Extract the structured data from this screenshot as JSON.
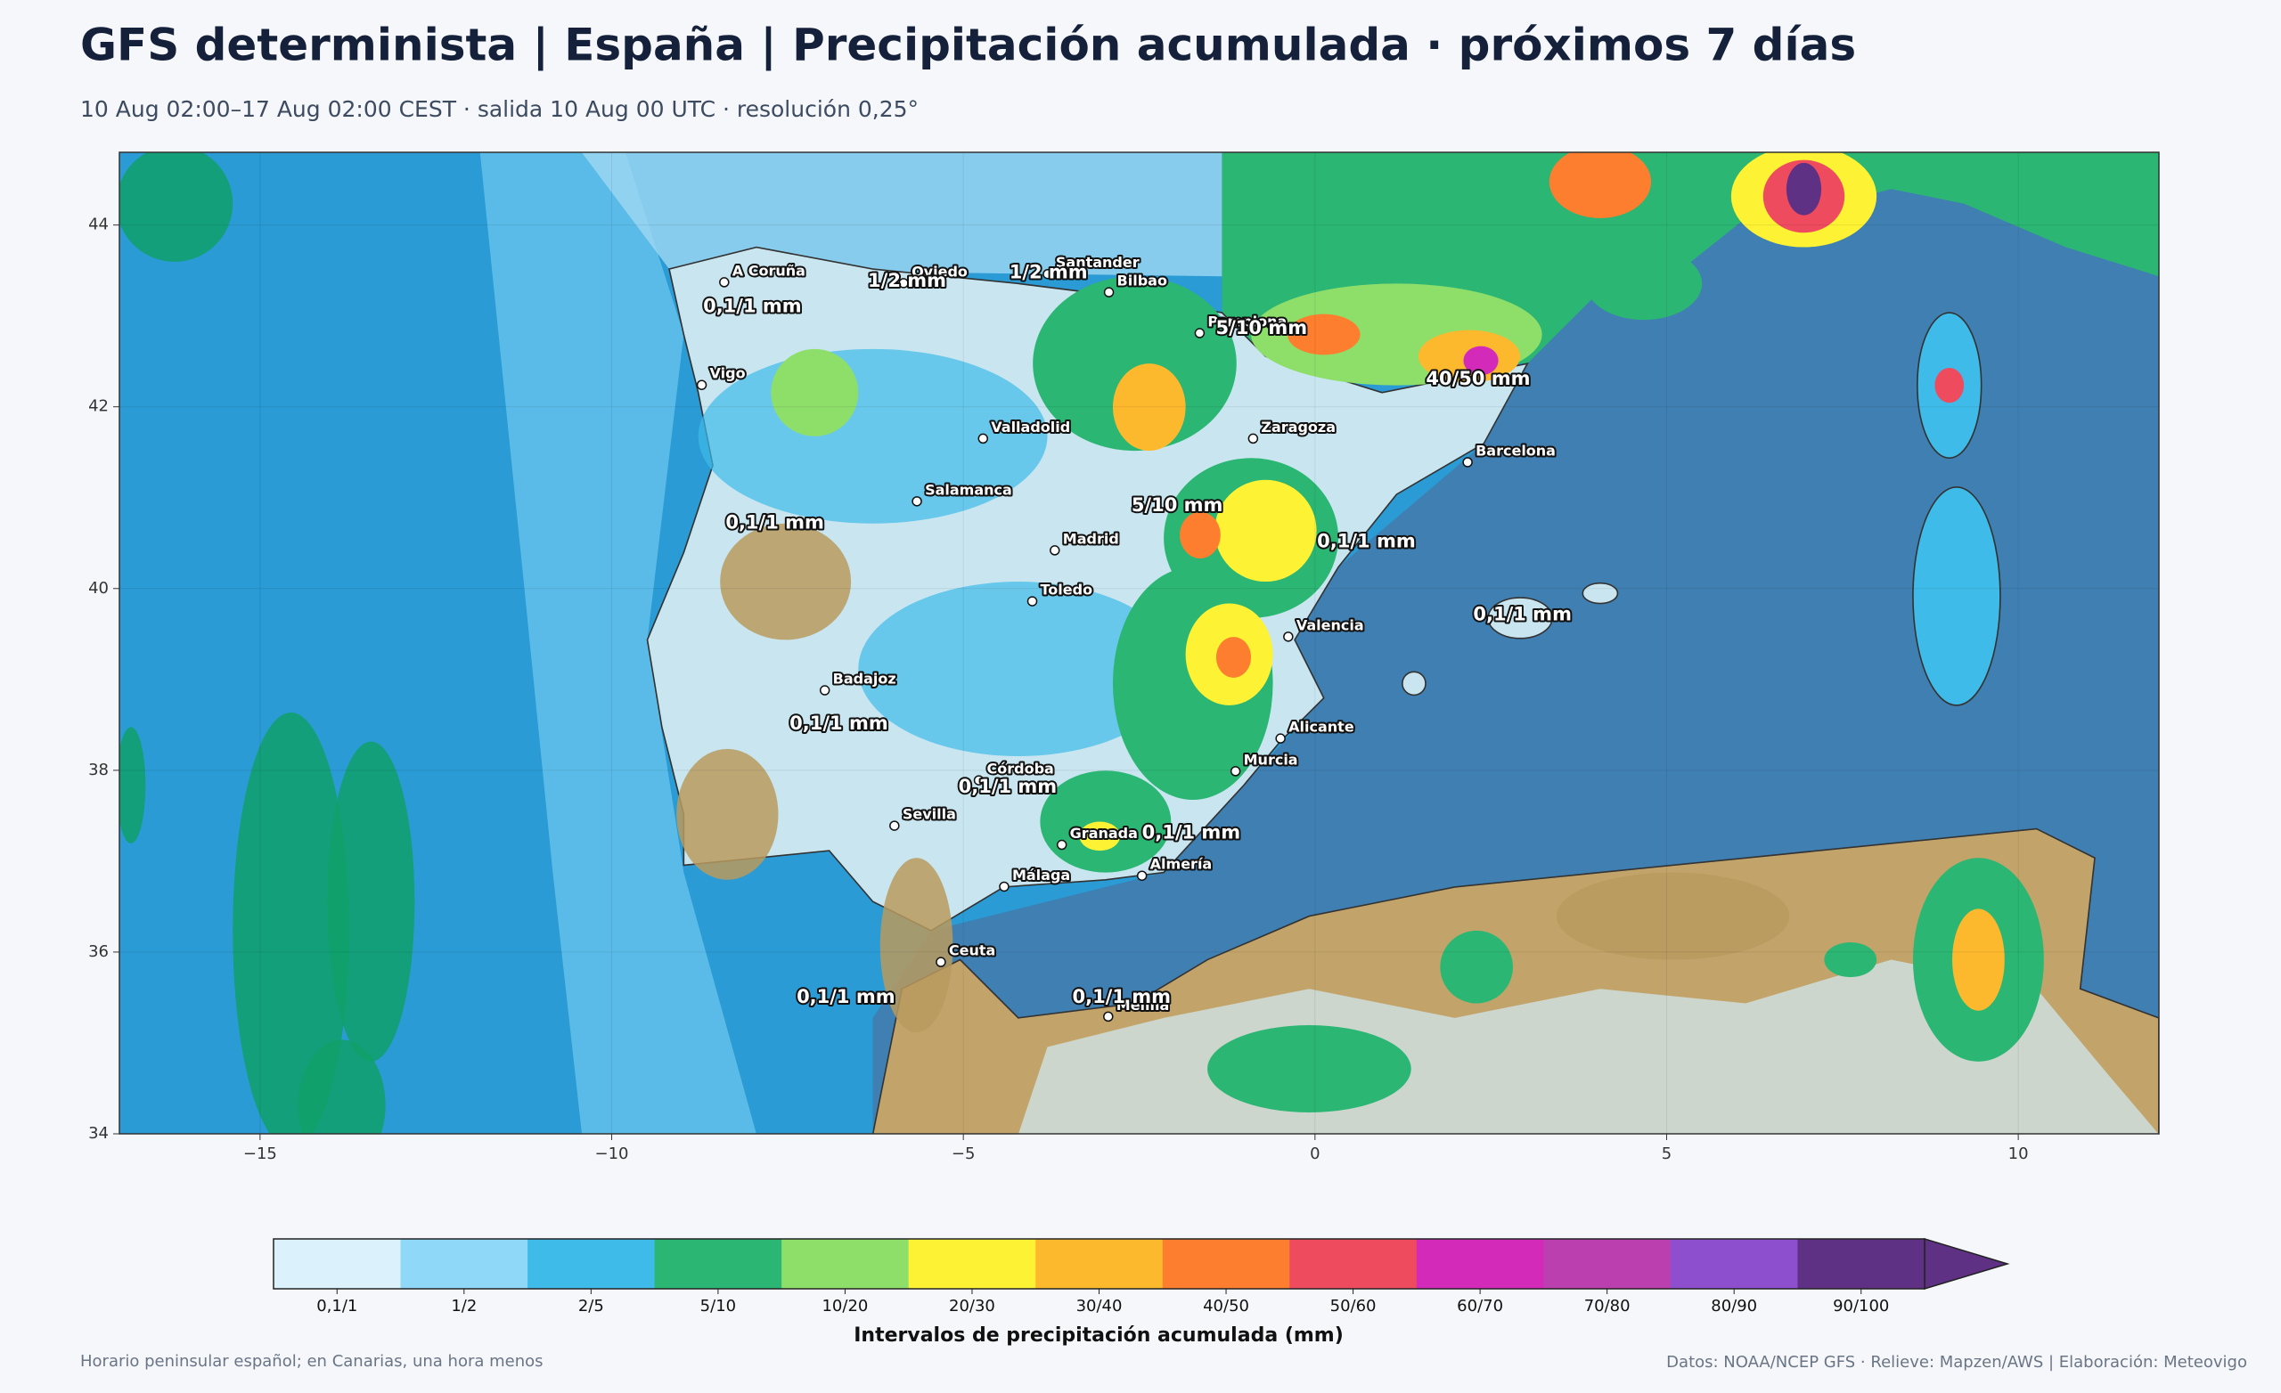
{
  "header": {
    "title": "GFS determinista | España | Precipitación acumulada · próximos 7 días",
    "subtitle": "10 Aug 02:00–17 Aug 02:00 CEST · salida 10 Aug 00 UTC · resolución 0,25°"
  },
  "map": {
    "xlim": [
      -17,
      12
    ],
    "ylim": [
      34,
      44.8
    ],
    "xticks": [
      {
        "value": -15,
        "label": "−15"
      },
      {
        "value": -10,
        "label": "−10"
      },
      {
        "value": -5,
        "label": "−5"
      },
      0,
      5,
      10
    ],
    "yticks": [
      34,
      36,
      38,
      40,
      42,
      44
    ],
    "grid": true,
    "cities": [
      {
        "name": "A Coruña",
        "lon": -8.4,
        "lat": 43.37
      },
      {
        "name": "Oviedo",
        "lon": -5.85,
        "lat": 43.36
      },
      {
        "name": "Santander",
        "lon": -3.8,
        "lat": 43.46
      },
      {
        "name": "Bilbao",
        "lon": -2.93,
        "lat": 43.26
      },
      {
        "name": "Pamplona",
        "lon": -1.64,
        "lat": 42.81
      },
      {
        "name": "Vigo",
        "lon": -8.72,
        "lat": 42.24
      },
      {
        "name": "Valladolid",
        "lon": -4.72,
        "lat": 41.65
      },
      {
        "name": "Zaragoza",
        "lon": -0.88,
        "lat": 41.65
      },
      {
        "name": "Barcelona",
        "lon": 2.17,
        "lat": 41.39
      },
      {
        "name": "Salamanca",
        "lon": -5.66,
        "lat": 40.96
      },
      {
        "name": "Madrid",
        "lon": -3.7,
        "lat": 40.42
      },
      {
        "name": "Toledo",
        "lon": -4.02,
        "lat": 39.86
      },
      {
        "name": "Valencia",
        "lon": -0.38,
        "lat": 39.47
      },
      {
        "name": "Badajoz",
        "lon": -6.97,
        "lat": 38.88
      },
      {
        "name": "Córdoba",
        "lon": -4.78,
        "lat": 37.89
      },
      {
        "name": "Murcia",
        "lon": -1.13,
        "lat": 37.99
      },
      {
        "name": "Alicante",
        "lon": -0.49,
        "lat": 38.35
      },
      {
        "name": "Sevilla",
        "lon": -5.98,
        "lat": 37.39
      },
      {
        "name": "Granada",
        "lon": -3.6,
        "lat": 37.18
      },
      {
        "name": "Málaga",
        "lon": -4.42,
        "lat": 36.72
      },
      {
        "name": "Almería",
        "lon": -2.46,
        "lat": 36.84
      },
      {
        "name": "Ceuta",
        "lon": -5.32,
        "lat": 35.89
      },
      {
        "name": "Melilla",
        "lon": -2.94,
        "lat": 35.29
      }
    ],
    "amount_labels": [
      {
        "text": "0,1/1 mm",
        "lon": -8.0,
        "lat": 43.1
      },
      {
        "text": "1/2 mm",
        "lon": -5.8,
        "lat": 43.38
      },
      {
        "text": "1/2 mm",
        "lon": -3.79,
        "lat": 43.47
      },
      {
        "text": "5/10 mm",
        "lon": -0.76,
        "lat": 42.86
      },
      {
        "text": "40/50 mm",
        "lon": 2.32,
        "lat": 42.3
      },
      {
        "text": "0,1/1 mm",
        "lon": -7.68,
        "lat": 40.72
      },
      {
        "text": "5/10 mm",
        "lon": -1.96,
        "lat": 40.91
      },
      {
        "text": "0,1/1 mm",
        "lon": 0.73,
        "lat": 40.51
      },
      {
        "text": "0,1/1 mm",
        "lon": 2.95,
        "lat": 39.71
      },
      {
        "text": "0,1/1 mm",
        "lon": -6.77,
        "lat": 38.51
      },
      {
        "text": "0,1/1 mm",
        "lon": -4.37,
        "lat": 37.81
      },
      {
        "text": "0,1/1 mm",
        "lon": -1.76,
        "lat": 37.31
      },
      {
        "text": "0,1/1 mm",
        "lon": -6.67,
        "lat": 35.5
      },
      {
        "text": "0,1/1 mm",
        "lon": -2.75,
        "lat": 35.5
      }
    ]
  },
  "colorbar": {
    "title": "Intervalos de precipitación acumulada (mm)",
    "classes": [
      {
        "label": "0,1/1",
        "color": "#dbf1fb"
      },
      {
        "label": "1/2",
        "color": "#8fd8f8"
      },
      {
        "label": "2/5",
        "color": "#3ebbe8"
      },
      {
        "label": "5/10",
        "color": "#2bb673"
      },
      {
        "label": "10/20",
        "color": "#8ede6a"
      },
      {
        "label": "20/30",
        "color": "#fef234"
      },
      {
        "label": "30/40",
        "color": "#fdb92e"
      },
      {
        "label": "40/50",
        "color": "#fd7e2e"
      },
      {
        "label": "50/60",
        "color": "#ee4b5e"
      },
      {
        "label": "60/70",
        "color": "#d42aba"
      },
      {
        "label": "70/80",
        "color": "#bb3fae"
      },
      {
        "label": "80/90",
        "color": "#8e4fce"
      },
      {
        "label": "90/100",
        "color": "#5e3184"
      }
    ]
  },
  "footer": {
    "left": "Horario peninsular español; en Canarias, una hora menos",
    "right": "Datos: NOAA/NCEP GFS · Relieve: Mapzen/AWS | Elaboración: Meteovigo"
  }
}
